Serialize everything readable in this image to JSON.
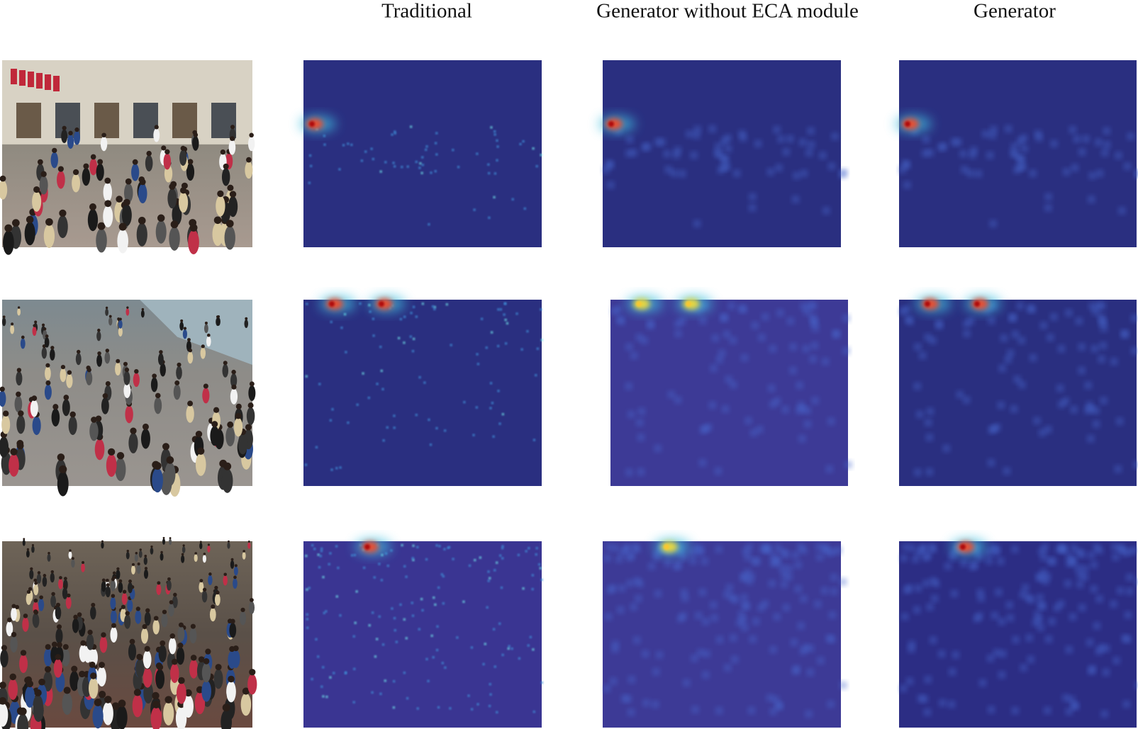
{
  "figure": {
    "columns": [
      "Traditional",
      "Generator without ECA module",
      "Generator"
    ]
  }
}
